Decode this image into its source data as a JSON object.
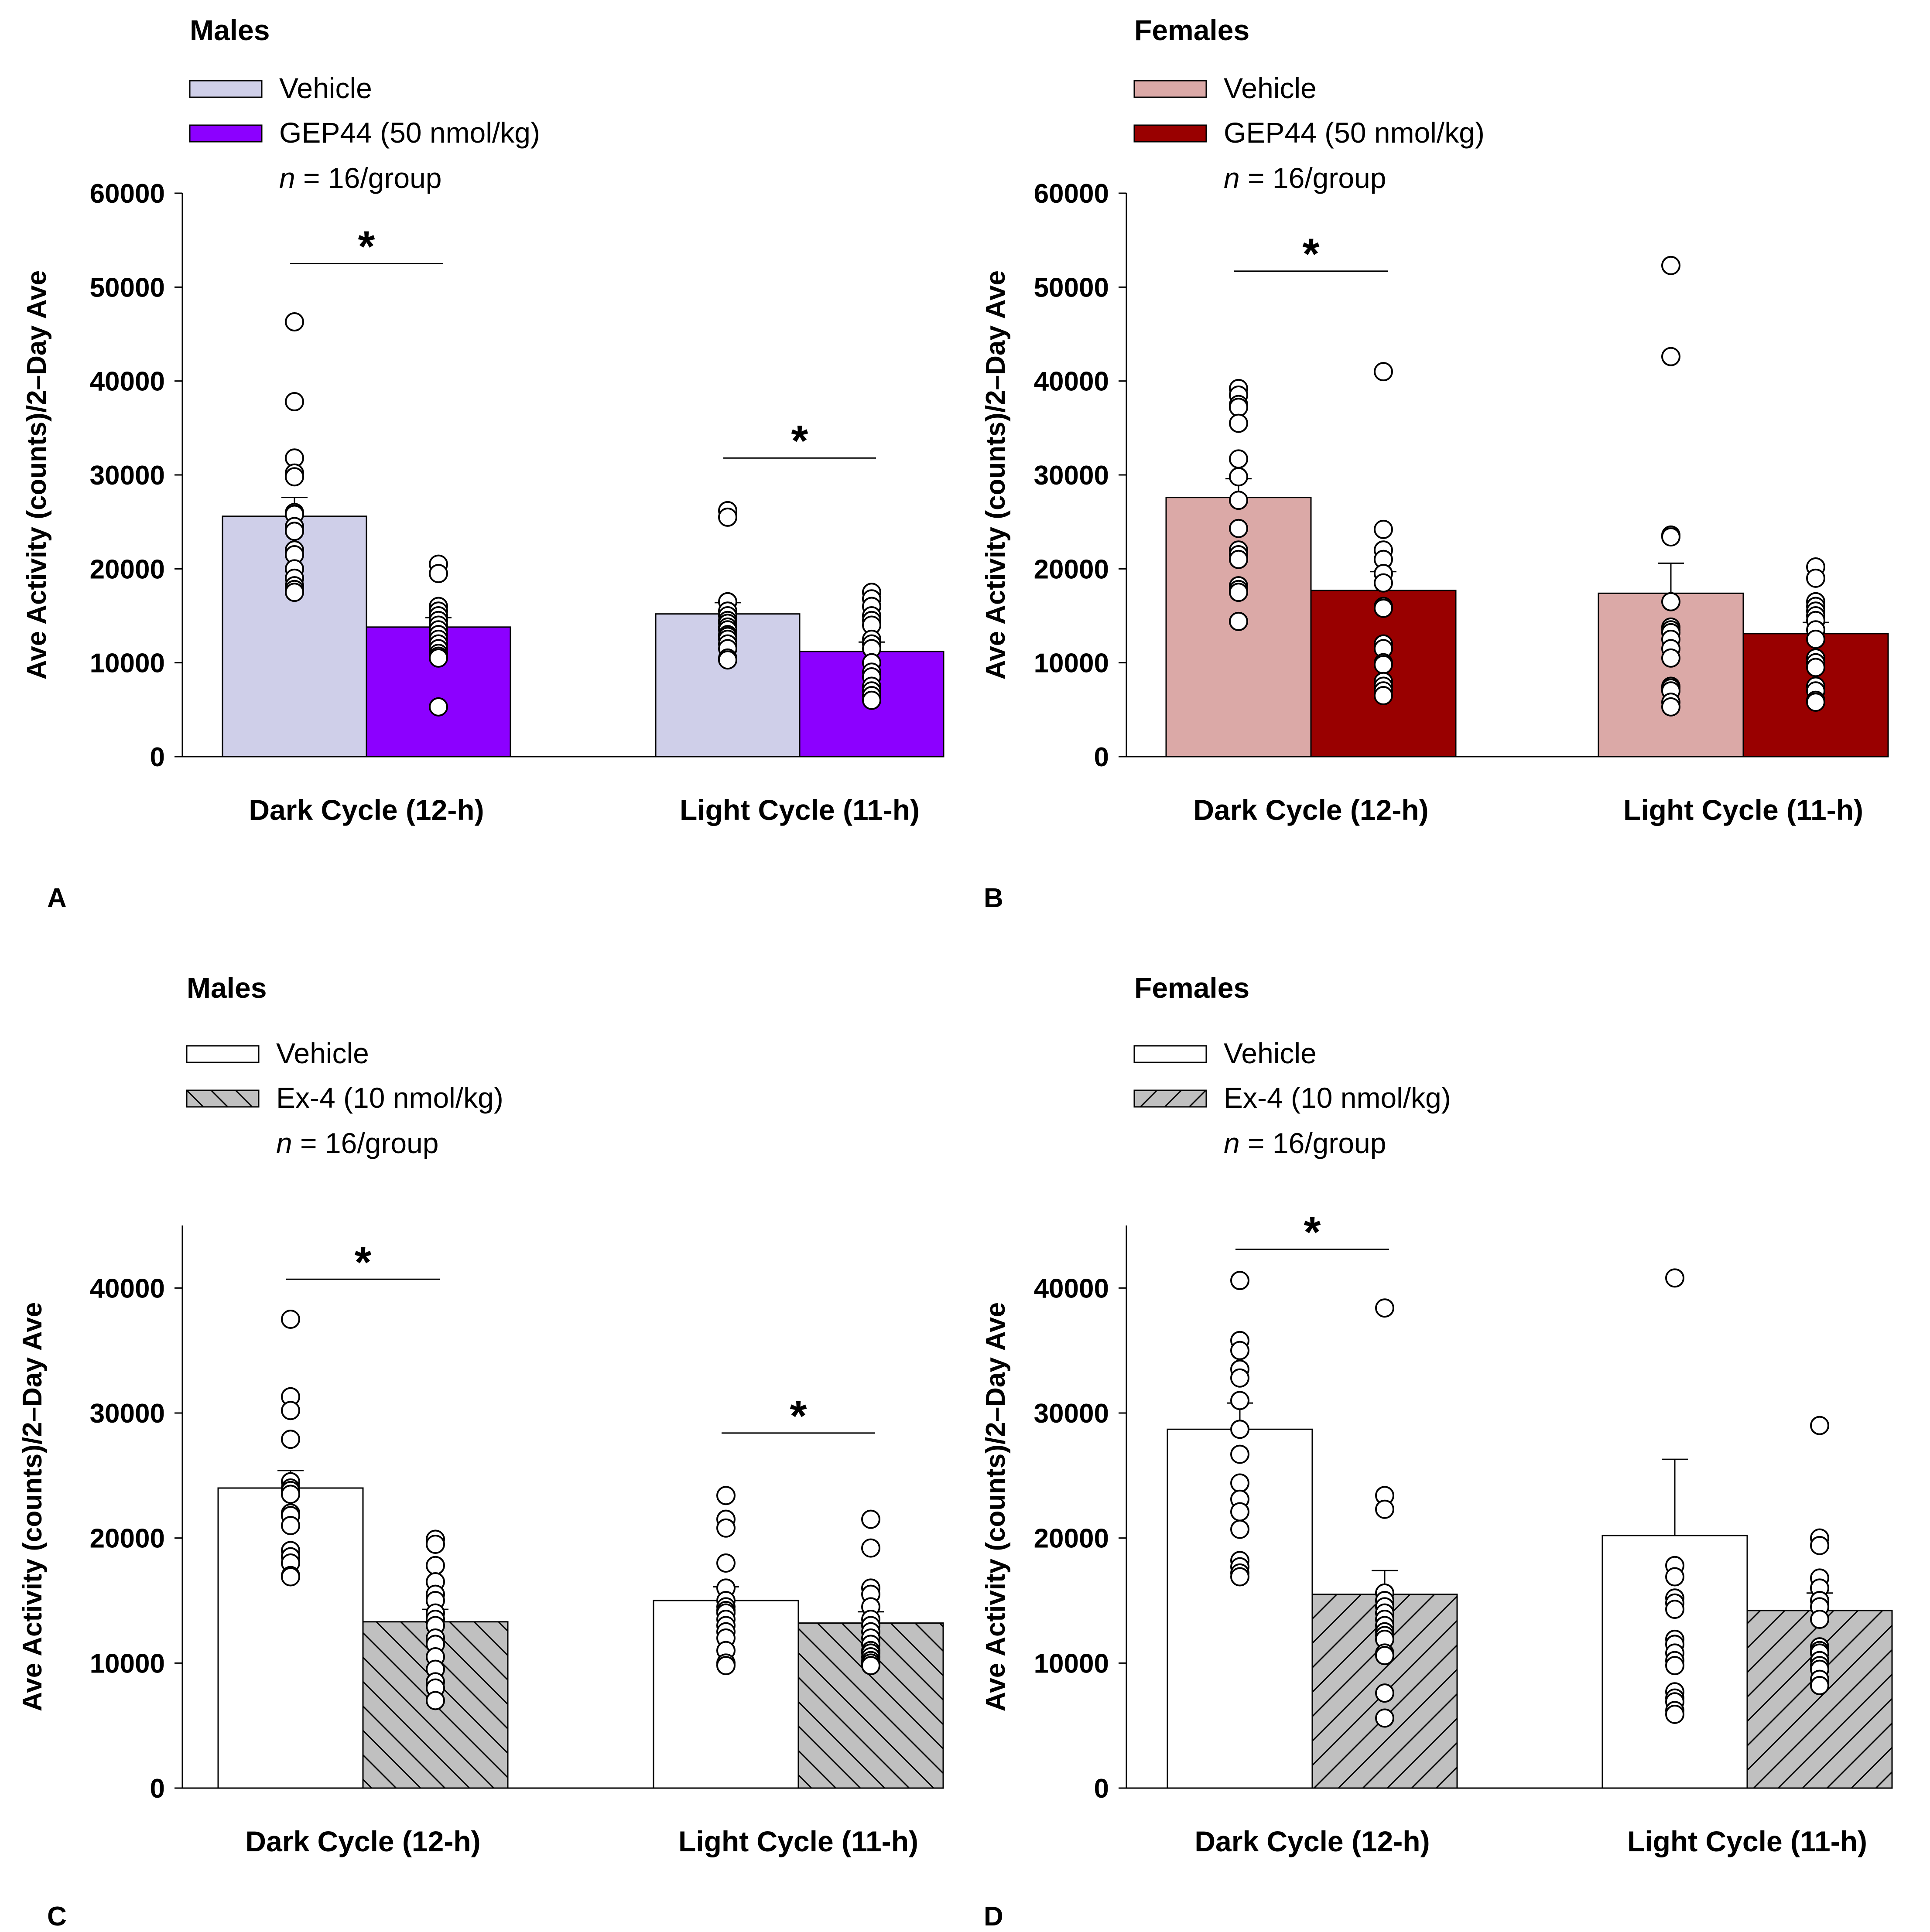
{
  "chart_data": [
    {
      "panel_letter": "A",
      "type": "bar",
      "title": "Males",
      "legend": {
        "entries": [
          "Vehicle",
          "GEP44 (50 nmol/kg)"
        ],
        "n_label_italic": "n",
        "n_label_rest": " = 16/group"
      },
      "ylabel": "Ave Activity (counts)/2–Day Ave",
      "ylim": [
        0,
        60000
      ],
      "yticks": [
        0,
        10000,
        20000,
        30000,
        40000,
        50000,
        60000
      ],
      "categories": [
        "Dark Cycle (12-h)",
        "Light Cycle (11-h)"
      ],
      "series": [
        {
          "name": "Vehicle",
          "color": "#cfcfe9",
          "pattern": "none",
          "values": [
            25600,
            15200
          ],
          "sem": [
            2000,
            1200
          ],
          "points": [
            [
              46300,
              37800,
              31800,
              30200,
              29800,
              26000,
              25800,
              24500,
              24000,
              22000,
              21500,
              20000,
              19000,
              18200,
              17800,
              17500
            ],
            [
              26200,
              25500,
              16500,
              15500,
              15000,
              14500,
              14200,
              13800,
              13500,
              13000,
              12800,
              12500,
              12000,
              11500,
              10500,
              10300
            ]
          ]
        },
        {
          "name": "GEP44 (50 nmol/kg)",
          "color": "#8c00ff",
          "pattern": "none",
          "values": [
            13800,
            11200
          ],
          "sem": [
            1000,
            1000
          ],
          "points": [
            [
              20500,
              19500,
              16000,
              15500,
              15000,
              14500,
              14000,
              13500,
              13000,
              12500,
              12000,
              11500,
              11000,
              10700,
              10500,
              5300
            ],
            [
              17500,
              16800,
              16000,
              15000,
              14500,
              14000,
              12500,
              12000,
              11500,
              10000,
              9000,
              8500,
              7500,
              7000,
              6500,
              6000
            ]
          ]
        }
      ],
      "significance": [
        {
          "category": 0,
          "label": "*",
          "y": 52500
        },
        {
          "category": 1,
          "label": "*",
          "y": 31800
        }
      ]
    },
    {
      "panel_letter": "B",
      "type": "bar",
      "title": "Females",
      "legend": {
        "entries": [
          "Vehicle",
          "GEP44 (50 nmol/kg)"
        ],
        "n_label_italic": "n",
        "n_label_rest": " = 16/group"
      },
      "ylabel": "Ave Activity (counts)/2–Day Ave",
      "ylim": [
        0,
        60000
      ],
      "yticks": [
        0,
        10000,
        20000,
        30000,
        40000,
        50000,
        60000
      ],
      "categories": [
        "Dark Cycle (12-h)",
        "Light Cycle (11-h)"
      ],
      "series": [
        {
          "name": "Vehicle",
          "color": "#dba9a7",
          "pattern": "none",
          "values": [
            27600,
            17400
          ],
          "sem": [
            2000,
            3200
          ],
          "points": [
            [
              39200,
              38500,
              37500,
              37200,
              35500,
              31700,
              29800,
              27300,
              24300,
              22000,
              21500,
              21000,
              18200,
              17800,
              17500,
              14400
            ],
            [
              52300,
              42600,
              23600,
              23400,
              16500,
              13800,
              13500,
              13200,
              12500,
              11500,
              10500,
              7500,
              7300,
              7000,
              5800,
              5300
            ]
          ]
        },
        {
          "name": "GEP44 (50 nmol/kg)",
          "color": "#990000",
          "pattern": "none",
          "values": [
            17700,
            13100
          ],
          "sem": [
            2000,
            1200
          ],
          "points": [
            [
              41000,
              24200,
              22000,
              21000,
              19500,
              18500,
              16000,
              15800,
              12000,
              11500,
              10000,
              9800,
              8000,
              7500,
              7000,
              6500
            ],
            [
              20200,
              19000,
              16500,
              16000,
              15500,
              15000,
              14500,
              13500,
              12500,
              10500,
              10000,
              9500,
              7500,
              7000,
              6000,
              5800
            ]
          ]
        }
      ],
      "significance": [
        {
          "category": 0,
          "label": "*",
          "y": 51700
        }
      ]
    },
    {
      "panel_letter": "C",
      "type": "bar",
      "title": "Males",
      "legend": {
        "entries": [
          "Vehicle",
          "Ex-4 (10 nmol/kg)"
        ],
        "n_label_italic": "n",
        "n_label_rest": " = 16/group"
      },
      "ylabel": "Ave Activity (counts)/2–Day Ave",
      "ylim": [
        0,
        45000
      ],
      "yticks": [
        0,
        10000,
        20000,
        30000,
        40000
      ],
      "categories": [
        "Dark Cycle (12-h)",
        "Light Cycle (11-h)"
      ],
      "series": [
        {
          "name": "Vehicle",
          "color": "#ffffff",
          "pattern": "none",
          "values": [
            24000,
            15000
          ],
          "sem": [
            1400,
            1100
          ],
          "points": [
            [
              37500,
              31300,
              30200,
              27900,
              24500,
              24000,
              23800,
              23500,
              22000,
              21800,
              21000,
              19000,
              18500,
              18000,
              17000,
              16900
            ],
            [
              23400,
              21500,
              20800,
              18000,
              16000,
              15000,
              14500,
              14200,
              14000,
              13500,
              13000,
              12500,
              12000,
              11000,
              10000,
              9800
            ]
          ]
        },
        {
          "name": "Ex-4 (10 nmol/kg)",
          "color": "#c0c0c0",
          "pattern": "backslash",
          "values": [
            13300,
            13200
          ],
          "sem": [
            1000,
            900
          ],
          "points": [
            [
              19900,
              19500,
              17800,
              16500,
              15500,
              15000,
              14000,
              13500,
              13000,
              12000,
              11500,
              10500,
              9500,
              8500,
              8000,
              7000
            ],
            [
              21500,
              19200,
              16000,
              15500,
              14500,
              13500,
              13000,
              12500,
              12000,
              11500,
              11000,
              10800,
              10500,
              10200,
              10000,
              9800
            ]
          ]
        }
      ],
      "significance": [
        {
          "category": 0,
          "label": "*",
          "y": 40700
        },
        {
          "category": 1,
          "label": "*",
          "y": 28400
        }
      ]
    },
    {
      "panel_letter": "D",
      "type": "bar",
      "title": "Females",
      "legend": {
        "entries": [
          "Vehicle",
          "Ex-4 (10 nmol/kg)"
        ],
        "n_label_italic": "n",
        "n_label_rest": " = 16/group"
      },
      "ylabel": "Ave Activity (counts)/2–Day Ave",
      "ylim": [
        0,
        45000
      ],
      "yticks": [
        0,
        10000,
        20000,
        30000,
        40000
      ],
      "categories": [
        "Dark Cycle (12-h)",
        "Light Cycle (11-h)"
      ],
      "series": [
        {
          "name": "Vehicle",
          "color": "#ffffff",
          "pattern": "none",
          "values": [
            28700,
            20200
          ],
          "sem": [
            2100,
            6100
          ],
          "points": [
            [
              40600,
              35800,
              35000,
              33500,
              32800,
              31000,
              28700,
              26700,
              24400,
              23100,
              22100,
              20700,
              18200,
              17700,
              17200,
              16900
            ],
            [
              40800,
              17800,
              16900,
              15200,
              14800,
              14300,
              11900,
              11500,
              10800,
              10200,
              9800,
              7700,
              7200,
              6900,
              6200,
              5900
            ]
          ]
        },
        {
          "name": "Ex-4 (10 nmol/kg)",
          "color": "#c0c0c0",
          "pattern": "slash",
          "values": [
            15500,
            14200
          ],
          "sem": [
            1900,
            1400
          ],
          "points": [
            [
              38400,
              23400,
              22300,
              15600,
              15000,
              14500,
              14000,
              13500,
              13000,
              12500,
              12200,
              11900,
              10800,
              10600,
              7600,
              5600
            ],
            [
              29000,
              20000,
              19400,
              16800,
              16000,
              15000,
              14500,
              13500,
              11300,
              11000,
              10800,
              10200,
              9800,
              9500,
              8700,
              8200
            ]
          ]
        }
      ],
      "significance": [
        {
          "category": 0,
          "label": "*",
          "y": 43100
        }
      ]
    }
  ]
}
